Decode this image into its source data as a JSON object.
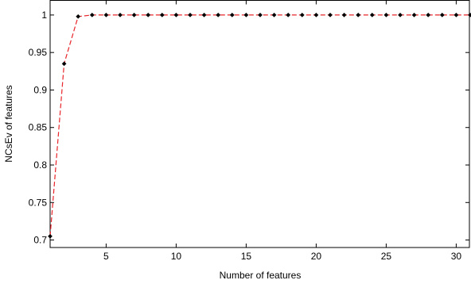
{
  "chart_data": {
    "type": "line",
    "xlabel": "Number of features",
    "ylabel": "NCsEv of features",
    "xlim": [
      1,
      31
    ],
    "ylim": [
      0.69,
      1.02
    ],
    "xticks": [
      5,
      10,
      15,
      20,
      25,
      30
    ],
    "xtick_labels": [
      "5",
      "10",
      "15",
      "20",
      "25",
      "30"
    ],
    "yticks": [
      0.7,
      0.75,
      0.8,
      0.85,
      0.9,
      0.95,
      1
    ],
    "ytick_labels": [
      "0.7",
      "0.75",
      "0.8",
      "0.85",
      "0.9",
      "0.95",
      "1"
    ],
    "grid": false,
    "series": [
      {
        "line_color": "#e8252a",
        "line_style": "dashed",
        "marker": "diamond",
        "marker_color": "#000000",
        "x": [
          1,
          2,
          3,
          4,
          5,
          6,
          7,
          8,
          9,
          10,
          11,
          12,
          13,
          14,
          15,
          16,
          17,
          18,
          19,
          20,
          21,
          22,
          23,
          24,
          25,
          26,
          27,
          28,
          29,
          30,
          31
        ],
        "y": [
          0.705,
          0.935,
          0.998,
          1,
          1,
          1,
          1,
          1,
          1,
          1,
          1,
          1,
          1,
          1,
          1,
          1,
          1,
          1,
          1,
          1,
          1,
          1,
          1,
          1,
          1,
          1,
          1,
          1,
          1,
          1,
          1
        ]
      }
    ]
  }
}
